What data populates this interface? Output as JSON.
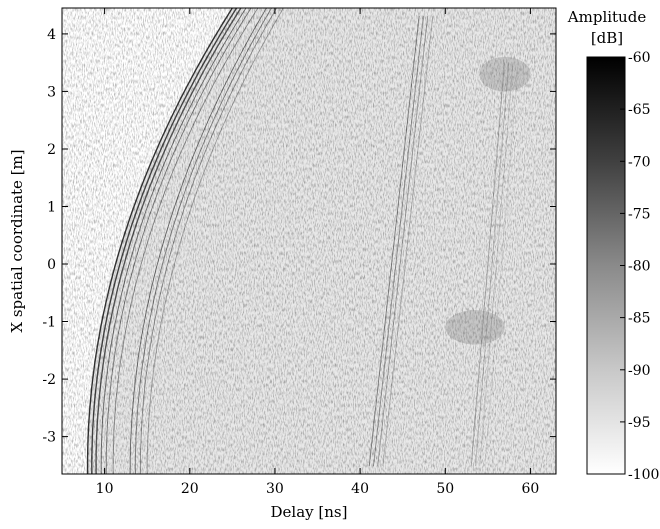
{
  "chart_data": {
    "type": "heatmap",
    "title": "",
    "xlabel": "Delay [ns]",
    "ylabel": "X spatial coordinate [m]",
    "xlim": [
      5,
      63
    ],
    "ylim": [
      -3.65,
      4.45
    ],
    "x_ticks": [
      10,
      20,
      30,
      40,
      50,
      60
    ],
    "y_ticks": [
      4,
      3,
      2,
      1,
      0,
      -1,
      -2,
      -3
    ],
    "grid": false,
    "colormap": "gray (white = low, black = high)",
    "colorbar": {
      "title_line1": "Amplitude",
      "title_line2": "[dB]",
      "range": [
        -100,
        -60
      ],
      "ticks": [
        -60,
        -65,
        -70,
        -75,
        -80,
        -85,
        -90,
        -95,
        -100
      ],
      "low_color": "#ffffff",
      "high_color": "#000000"
    },
    "features": [
      {
        "name": "direct arrival hyperbola",
        "apex_delay_ns": 8,
        "apex_x_m": -3.5,
        "reaches_top_at_ns": 25
      },
      {
        "name": "second echo hyperbola",
        "apex_delay_ns": 13,
        "apex_x_m": -3.6,
        "reaches_top_at_ns": 29
      },
      {
        "name": "reflection 1",
        "delay_range_ns": [
          41,
          47
        ],
        "x_range_m": [
          -3.6,
          4.4
        ]
      },
      {
        "name": "reflection 2",
        "delay_range_ns": [
          53,
          57
        ],
        "x_range_m": [
          -3.6,
          3.6
        ]
      },
      {
        "name": "patch",
        "delay_range_ns": [
          50,
          57
        ],
        "x_range_m": [
          -1.4,
          -0.8
        ]
      },
      {
        "name": "patch",
        "delay_range_ns": [
          54,
          60
        ],
        "x_range_m": [
          3.0,
          3.6
        ]
      }
    ]
  }
}
